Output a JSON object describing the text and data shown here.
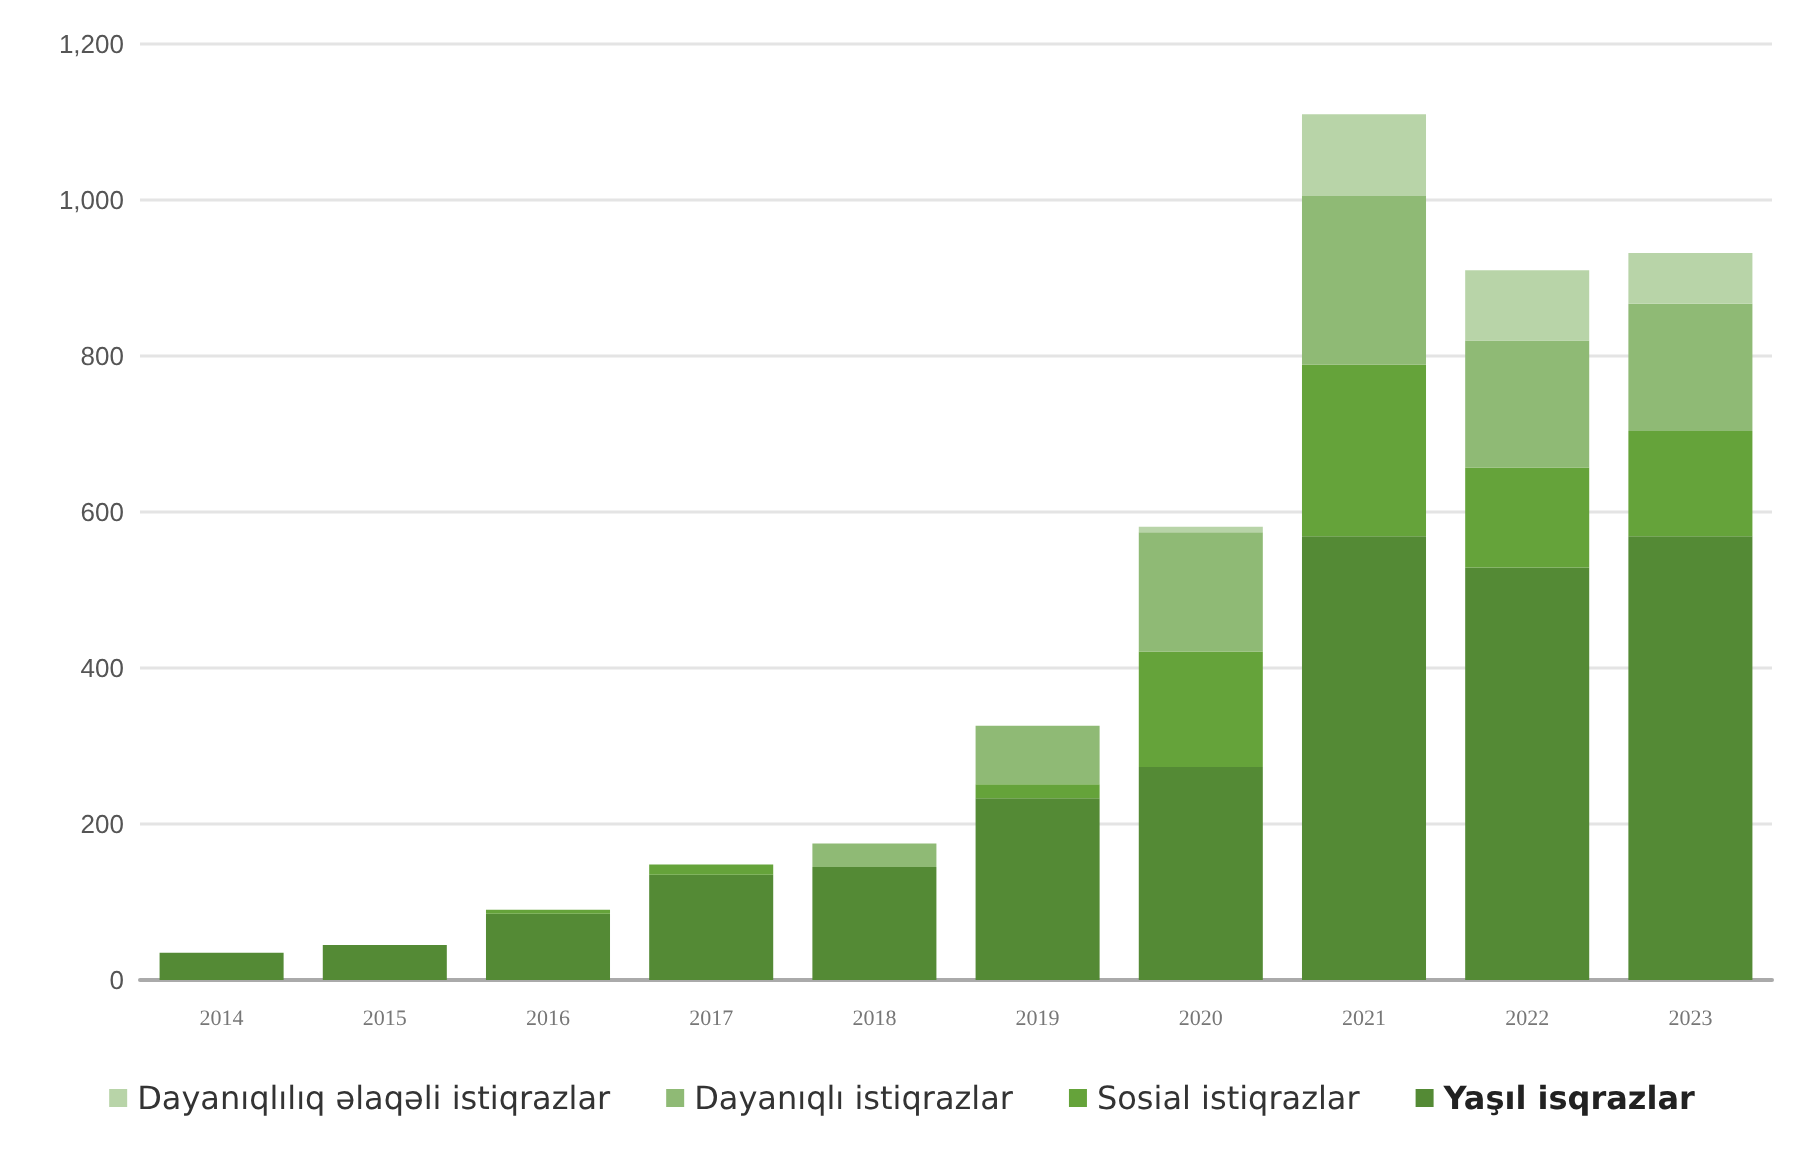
{
  "chart_data": {
    "type": "bar",
    "stacked": true,
    "categories": [
      "2014",
      "2015",
      "2016",
      "2017",
      "2018",
      "2019",
      "2020",
      "2021",
      "2022",
      "2023"
    ],
    "series": [
      {
        "name": "Yaşıl isqrazlar",
        "color": "#548a35",
        "values": [
          35,
          45,
          85,
          135,
          145,
          233,
          273,
          569,
          529,
          569
        ]
      },
      {
        "name": "Sosial istiqrazlar",
        "color": "#65a33a",
        "values": [
          0,
          0,
          5,
          13,
          0,
          18,
          148,
          220,
          128,
          135
        ]
      },
      {
        "name": "Dayanıqlı istiqrazlar",
        "color": "#8fba75",
        "values": [
          0,
          0,
          0,
          0,
          30,
          75,
          153,
          216,
          163,
          163
        ]
      },
      {
        "name": "Dayanıqlılıq əlaqəli istiqrazlar",
        "color": "#b8d4a8",
        "values": [
          0,
          0,
          0,
          0,
          0,
          0,
          7,
          105,
          90,
          65
        ]
      }
    ],
    "ylim": [
      0,
      1200
    ],
    "yticks": [
      0,
      200,
      400,
      600,
      800,
      {
        "value": 1000,
        "label": "1,000"
      },
      {
        "value": 1200,
        "label": "1,200"
      }
    ],
    "grid": "y",
    "legend": "bottom"
  }
}
